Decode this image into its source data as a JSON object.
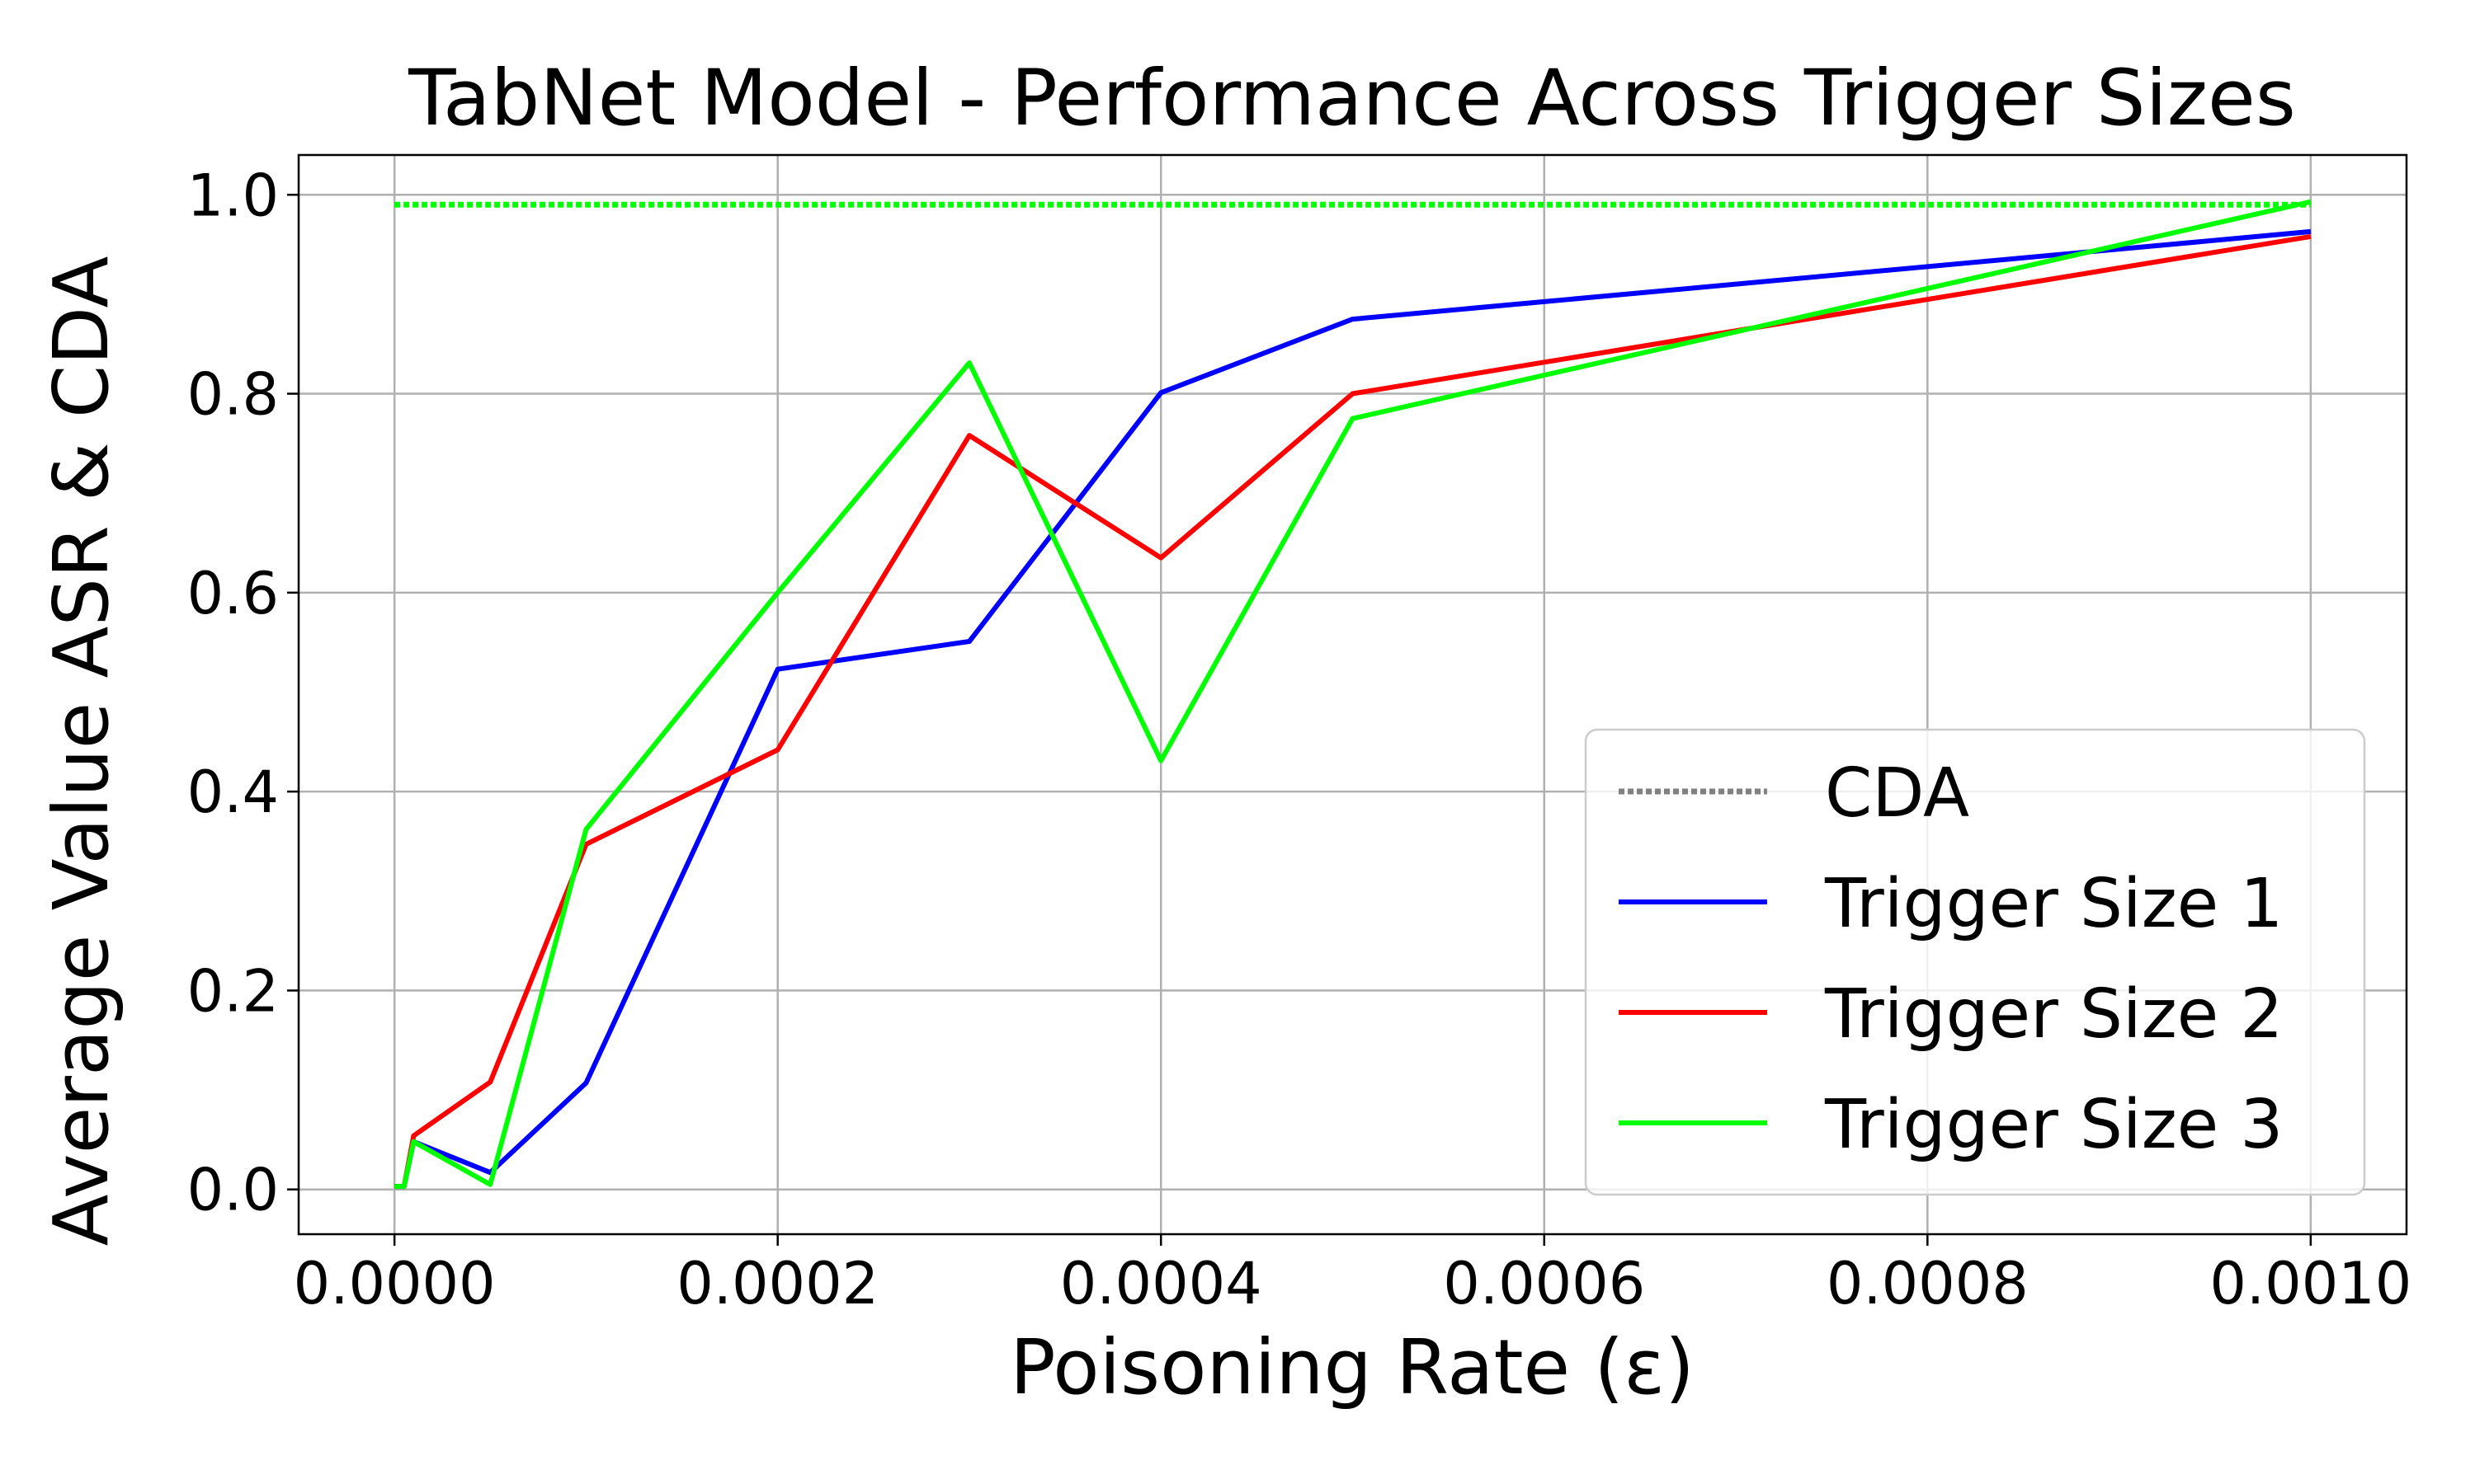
{
  "chart_data": {
    "type": "line",
    "title": "TabNet Model - Performance Across Trigger Sizes",
    "xlabel": "Poisoning Rate (ε)",
    "ylabel": "Average Value ASR & CDA",
    "xlim": [
      -5e-05,
      0.00105
    ],
    "ylim": [
      -0.045,
      1.04
    ],
    "xticks": [
      0,
      0.0002,
      0.0004,
      0.0006,
      0.0008,
      0.001
    ],
    "xtick_labels": [
      "0.0000",
      "0.0002",
      "0.0004",
      "0.0006",
      "0.0008",
      "0.0010"
    ],
    "yticks": [
      0,
      0.2,
      0.4,
      0.6,
      0.8,
      1.0
    ],
    "ytick_labels": [
      "0.0",
      "0.2",
      "0.4",
      "0.6",
      "0.8",
      "1.0"
    ],
    "grid": true,
    "legend_position": "lower-right",
    "x": [
      0,
      5e-06,
      1e-05,
      5e-05,
      0.0001,
      0.0002,
      0.0003,
      0.0004,
      0.0005,
      0.001
    ],
    "series": [
      {
        "name": "CDA",
        "style": "dotted",
        "color": "#00ff00",
        "legend_color": "#808080",
        "x": [
          0,
          0.001
        ],
        "values": [
          0.99,
          0.99
        ]
      },
      {
        "name": "Trigger Size 1",
        "style": "solid",
        "color": "#0000ff",
        "values": [
          0.003,
          0.003,
          0.048,
          0.017,
          0.107,
          0.523,
          0.551,
          0.801,
          0.875,
          0.963
        ]
      },
      {
        "name": "Trigger Size 2",
        "style": "solid",
        "color": "#ff0000",
        "values": [
          0.003,
          0.003,
          0.054,
          0.108,
          0.347,
          0.442,
          0.758,
          0.635,
          0.8,
          0.958
        ]
      },
      {
        "name": "Trigger Size 3",
        "style": "solid",
        "color": "#00ff00",
        "values": [
          0.003,
          0.003,
          0.048,
          0.005,
          0.362,
          0.6,
          0.831,
          0.431,
          0.775,
          0.993
        ]
      }
    ]
  }
}
